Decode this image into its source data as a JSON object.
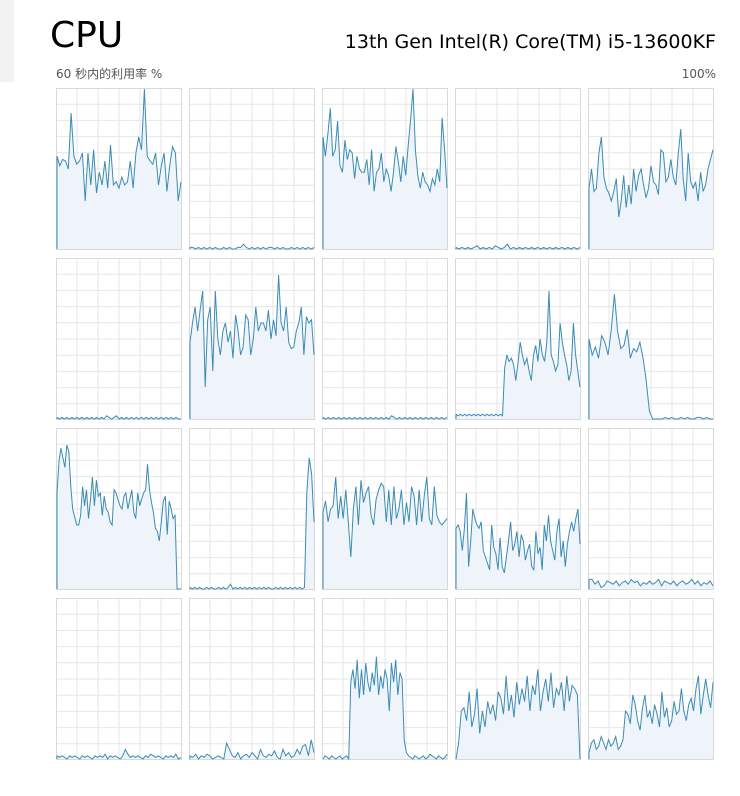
{
  "header": {
    "title": "CPU",
    "cpu_model": "13th Gen Intel(R) Core(TM) i5-13600KF",
    "utilization_label": "60 秒内的利用率 %",
    "max_label": "100%"
  },
  "colors": {
    "line": "#3b8bb5",
    "fill": "#eef4f9",
    "gridline": "#e6e6e6",
    "border": "#d9d9d9"
  },
  "chart_data": {
    "type": "line",
    "ylim": [
      0,
      100
    ],
    "series": [
      {
        "values": [
          58,
          52,
          56,
          55,
          50,
          85,
          58,
          53,
          55,
          60,
          30,
          60,
          40,
          62,
          35,
          48,
          40,
          55,
          38,
          65,
          40,
          42,
          38,
          45,
          40,
          42,
          55,
          38,
          60,
          70,
          62,
          100,
          58,
          55,
          53,
          60,
          40,
          52,
          60,
          36,
          52,
          64,
          60,
          30,
          42
        ]
      },
      {
        "values": [
          1,
          1,
          0,
          1,
          0,
          1,
          0,
          1,
          0,
          1,
          0,
          0,
          1,
          0,
          1,
          0,
          0,
          1,
          1,
          3,
          1,
          0,
          1,
          0,
          1,
          0,
          1,
          0,
          1,
          1,
          0,
          1,
          0,
          1,
          0,
          0,
          1,
          0,
          1,
          0,
          1,
          0,
          1,
          0,
          1
        ]
      },
      {
        "values": [
          70,
          58,
          72,
          88,
          58,
          62,
          80,
          52,
          48,
          68,
          56,
          62,
          60,
          44,
          58,
          50,
          48,
          48,
          56,
          40,
          62,
          36,
          48,
          50,
          60,
          42,
          50,
          46,
          36,
          48,
          64,
          54,
          42,
          58,
          46,
          64,
          80,
          100,
          62,
          46,
          38,
          48,
          42,
          40,
          36,
          44,
          40,
          50,
          42,
          82,
          62,
          38
        ]
      },
      {
        "values": [
          1,
          0,
          1,
          0,
          1,
          0,
          1,
          2,
          0,
          1,
          0,
          1,
          0,
          2,
          1,
          0,
          1,
          3,
          0,
          1,
          0,
          1,
          0,
          1,
          0,
          1,
          0,
          1,
          0,
          1,
          0,
          1,
          0,
          1,
          0,
          1,
          0,
          1,
          0,
          1,
          0,
          1
        ]
      },
      {
        "values": [
          38,
          50,
          36,
          38,
          60,
          70,
          45,
          38,
          35,
          30,
          36,
          44,
          20,
          30,
          46,
          26,
          40,
          28,
          50,
          36,
          46,
          50,
          40,
          32,
          38,
          52,
          42,
          40,
          34,
          62,
          60,
          42,
          45,
          56,
          45,
          40,
          60,
          75,
          44,
          30,
          60,
          42,
          38,
          42,
          30,
          48,
          36,
          40,
          50,
          56,
          62
        ]
      },
      {
        "values": [
          1,
          0,
          1,
          0,
          1,
          0,
          1,
          0,
          1,
          0,
          1,
          0,
          1,
          0,
          1,
          0,
          1,
          0,
          1,
          0,
          2,
          1,
          0,
          1,
          2,
          0,
          1,
          0,
          1,
          0,
          1,
          0,
          1,
          0,
          1,
          0,
          1,
          0,
          1,
          0,
          1,
          0,
          1,
          0,
          1,
          0,
          1,
          0,
          1,
          0,
          0
        ]
      },
      {
        "values": [
          48,
          60,
          70,
          55,
          68,
          80,
          20,
          62,
          70,
          30,
          80,
          50,
          40,
          55,
          60,
          48,
          55,
          38,
          65,
          55,
          40,
          45,
          65,
          62,
          40,
          50,
          70,
          55,
          60,
          60,
          55,
          68,
          50,
          62,
          52,
          90,
          60,
          55,
          70,
          48,
          44,
          45,
          55,
          60,
          70,
          40,
          64,
          60,
          62,
          40
        ]
      },
      {
        "values": [
          1,
          0,
          1,
          0,
          1,
          0,
          1,
          0,
          1,
          0,
          1,
          0,
          1,
          0,
          1,
          0,
          1,
          0,
          1,
          0,
          1,
          0,
          1,
          0,
          1,
          0,
          2,
          1,
          0,
          1,
          0,
          1,
          0,
          1,
          0,
          1,
          0,
          1,
          0,
          1,
          0,
          1,
          0,
          1,
          0,
          1,
          0,
          1
        ]
      },
      {
        "values": [
          3,
          2,
          3,
          2,
          3,
          2,
          3,
          2,
          3,
          2,
          3,
          2,
          3,
          2,
          3,
          2,
          3,
          2,
          3,
          2,
          3,
          2,
          32,
          40,
          36,
          38,
          34,
          24,
          35,
          48,
          40,
          34,
          38,
          30,
          24,
          40,
          46,
          36,
          50,
          40,
          36,
          48,
          80,
          40,
          36,
          30,
          34,
          60,
          48,
          40,
          34,
          24,
          30,
          60,
          40,
          30,
          20
        ]
      },
      {
        "values": [
          50,
          40,
          45,
          38,
          52,
          48,
          40,
          56,
          78,
          55,
          44,
          46,
          56,
          38,
          44,
          42,
          48,
          38,
          24,
          5,
          0,
          0,
          0,
          0,
          1,
          0,
          1,
          0,
          0,
          1,
          0,
          1,
          0,
          0,
          1,
          1,
          0,
          1,
          0,
          0
        ]
      },
      {
        "values": [
          60,
          80,
          88,
          82,
          76,
          90,
          86,
          64,
          50,
          45,
          40,
          40,
          46,
          64,
          52,
          62,
          44,
          56,
          70,
          52,
          68,
          58,
          60,
          46,
          58,
          50,
          48,
          42,
          40,
          62,
          60,
          56,
          52,
          50,
          58,
          60,
          50,
          56,
          62,
          48,
          44,
          60,
          52,
          56,
          60,
          62,
          78,
          62,
          54,
          48,
          38,
          36,
          30,
          42,
          55,
          58,
          34,
          55,
          50,
          44,
          46,
          0,
          0,
          0
        ]
      },
      {
        "values": [
          1,
          0,
          1,
          0,
          1,
          0,
          0,
          1,
          0,
          1,
          0,
          0,
          1,
          0,
          1,
          0,
          1,
          3,
          0,
          1,
          0,
          1,
          0,
          1,
          0,
          1,
          0,
          1,
          0,
          1,
          0,
          1,
          0,
          1,
          0,
          0,
          1,
          0,
          1,
          0,
          1,
          0,
          1,
          0,
          1,
          0,
          1,
          0,
          1,
          60,
          82,
          72,
          42
        ]
      },
      {
        "values": [
          48,
          55,
          42,
          50,
          52,
          70,
          44,
          58,
          44,
          62,
          42,
          20,
          50,
          64,
          40,
          68,
          54,
          60,
          64,
          46,
          40,
          56,
          62,
          66,
          64,
          42,
          62,
          40,
          64,
          44,
          50,
          62,
          40,
          54,
          42,
          64,
          58,
          40,
          62,
          42,
          58,
          70,
          44,
          40,
          64,
          46,
          42,
          40,
          42,
          44
        ]
      },
      {
        "values": [
          38,
          40,
          36,
          24,
          38,
          60,
          14,
          30,
          50,
          44,
          40,
          38,
          42,
          24,
          20,
          16,
          12,
          40,
          26,
          22,
          12,
          32,
          14,
          10,
          20,
          30,
          42,
          24,
          28,
          36,
          20,
          34,
          30,
          18,
          24,
          28,
          14,
          12,
          36,
          22,
          26,
          12,
          40,
          30,
          46,
          30,
          24,
          18,
          36,
          44,
          20,
          30,
          14,
          28,
          36,
          42,
          36,
          44,
          50,
          28
        ]
      },
      {
        "values": [
          6,
          6,
          3,
          5,
          1,
          2,
          5,
          4,
          3,
          5,
          2,
          4,
          5,
          3,
          6,
          4,
          5,
          2,
          4,
          3,
          5,
          3,
          4,
          6,
          2,
          5,
          4,
          3,
          5,
          2,
          4,
          5,
          3,
          4,
          6,
          3,
          5,
          2,
          4,
          3,
          5,
          2
        ]
      },
      {
        "values": [
          2,
          1,
          2,
          1,
          0,
          2,
          1,
          2,
          1,
          0,
          2,
          1,
          2,
          1,
          0,
          2,
          1,
          2,
          1,
          3,
          0,
          2,
          1,
          2,
          1,
          0,
          2,
          6,
          3,
          1,
          2,
          1,
          2,
          1,
          0,
          2,
          1,
          3,
          2,
          1,
          2,
          1,
          0,
          2,
          1,
          2,
          1,
          3,
          0,
          1
        ]
      },
      {
        "values": [
          2,
          1,
          3,
          0,
          2,
          1,
          3,
          2,
          0,
          1,
          2,
          1,
          0,
          10,
          6,
          2,
          1,
          4,
          0,
          2,
          3,
          1,
          4,
          2,
          0,
          6,
          2,
          1,
          3,
          2,
          5,
          1,
          0,
          6,
          2,
          4,
          1,
          2,
          6,
          3,
          8,
          9,
          2,
          12,
          4
        ]
      },
      {
        "values": [
          0,
          2,
          1,
          0,
          2,
          1,
          0,
          1,
          2,
          0,
          1,
          2,
          0,
          48,
          56,
          44,
          62,
          38,
          56,
          40,
          60,
          48,
          42,
          54,
          46,
          64,
          40,
          52,
          44,
          56,
          50,
          30,
          60,
          48,
          62,
          40,
          54,
          50,
          12,
          4,
          2,
          1,
          0,
          2,
          1,
          0,
          1,
          2,
          0,
          1,
          3,
          2,
          1,
          0,
          2,
          1,
          0,
          1,
          3
        ]
      },
      {
        "values": [
          0,
          10,
          30,
          32,
          24,
          42,
          20,
          28,
          44,
          16,
          30,
          20,
          36,
          28,
          34,
          24,
          42,
          38,
          28,
          52,
          30,
          40,
          26,
          48,
          34,
          44,
          36,
          52,
          30,
          46,
          40,
          56,
          30,
          42,
          50,
          36,
          54,
          32,
          44,
          40,
          48,
          30,
          52,
          36,
          46,
          44,
          40,
          0
        ]
      },
      {
        "values": [
          4,
          10,
          12,
          6,
          8,
          14,
          10,
          6,
          12,
          8,
          10,
          14,
          6,
          8,
          12,
          30,
          28,
          22,
          40,
          34,
          24,
          18,
          32,
          40,
          26,
          30,
          22,
          34,
          28,
          20,
          42,
          26,
          32,
          20,
          24,
          36,
          28,
          30,
          44,
          30,
          24,
          34,
          38,
          30,
          44,
          52,
          28,
          40,
          50,
          40,
          32,
          48
        ]
      }
    ]
  }
}
